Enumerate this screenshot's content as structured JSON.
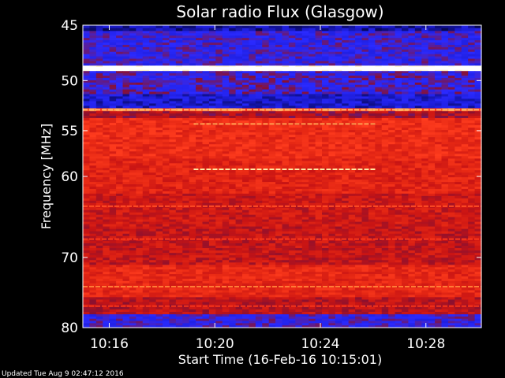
{
  "chart_data": {
    "type": "heatmap",
    "title": "Solar radio Flux (Glasgow)",
    "ylabel": "Frequency [MHz]",
    "xlabel": "Start Time (16-Feb-16 10:15:01)",
    "footer": "Updated Tue Aug  9 02:47:12 2016",
    "x_range_minutes": [
      0,
      15.1
    ],
    "x_ticks": [
      {
        "label": "10:16",
        "minute": 1.0
      },
      {
        "label": "10:20",
        "minute": 5.0
      },
      {
        "label": "10:24",
        "minute": 9.0
      },
      {
        "label": "10:28",
        "minute": 13.0
      }
    ],
    "y_range_mhz": [
      45,
      80
    ],
    "y_scale": "log",
    "y_ticks": [
      45,
      50,
      55,
      60,
      70,
      80
    ],
    "colormap": [
      "#000000",
      "#0a0a6e",
      "#1e1edc",
      "#2a2aff",
      "#8a1030",
      "#c81414",
      "#e62814",
      "#ff3c1e",
      "#ff8c3c",
      "#ffe6a0",
      "#ffffff"
    ],
    "bands": [
      {
        "from_mhz": 45.0,
        "to_mhz": 45.5,
        "level": 0.15
      },
      {
        "from_mhz": 45.5,
        "to_mhz": 48.6,
        "level": 0.3
      },
      {
        "from_mhz": 48.6,
        "to_mhz": 49.1,
        "level": 1.0
      },
      {
        "from_mhz": 49.1,
        "to_mhz": 51.3,
        "level": 0.32
      },
      {
        "from_mhz": 51.3,
        "to_mhz": 52.7,
        "level": 0.2
      },
      {
        "from_mhz": 52.7,
        "to_mhz": 53.0,
        "level": 0.75
      },
      {
        "from_mhz": 53.0,
        "to_mhz": 53.7,
        "level": 0.45
      },
      {
        "from_mhz": 53.7,
        "to_mhz": 58.0,
        "level": 0.62
      },
      {
        "from_mhz": 58.0,
        "to_mhz": 62.0,
        "level": 0.58
      },
      {
        "from_mhz": 62.0,
        "to_mhz": 66.0,
        "level": 0.52
      },
      {
        "from_mhz": 66.0,
        "to_mhz": 71.0,
        "level": 0.5
      },
      {
        "from_mhz": 71.0,
        "to_mhz": 75.5,
        "level": 0.6
      },
      {
        "from_mhz": 75.5,
        "to_mhz": 78.0,
        "level": 0.48
      },
      {
        "from_mhz": 78.0,
        "to_mhz": 80.0,
        "level": 0.3
      }
    ],
    "lines": [
      {
        "mhz": 48.85,
        "from_minute": 0,
        "to_minute": 15.1,
        "level": 1.0
      },
      {
        "mhz": 52.85,
        "from_minute": 0,
        "to_minute": 15.1,
        "level": 0.85
      },
      {
        "mhz": 54.3,
        "from_minute": 4.2,
        "to_minute": 11.1,
        "level": 0.82
      },
      {
        "mhz": 59.2,
        "from_minute": 4.2,
        "to_minute": 11.1,
        "level": 0.9
      },
      {
        "mhz": 63.5,
        "from_minute": 0,
        "to_minute": 15.1,
        "level": 0.72
      },
      {
        "mhz": 67.6,
        "from_minute": 0,
        "to_minute": 15.1,
        "level": 0.68
      },
      {
        "mhz": 74.0,
        "from_minute": 0,
        "to_minute": 15.1,
        "level": 0.78
      },
      {
        "mhz": 76.8,
        "from_minute": 0,
        "to_minute": 15.1,
        "level": 0.66
      }
    ]
  }
}
